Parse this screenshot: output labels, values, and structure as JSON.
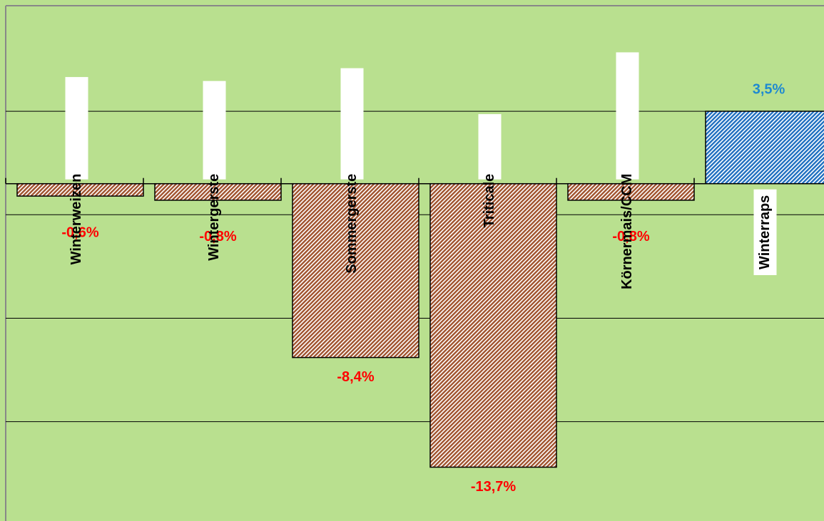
{
  "chart_data": {
    "type": "bar",
    "categories": [
      "Winterweizen",
      "Wintergerste",
      "Sommergerste",
      "Triticale",
      "Körnermais/CCM",
      "Winterraps"
    ],
    "values": [
      -0.6,
      -0.8,
      -8.4,
      -13.7,
      -0.8,
      3.5
    ],
    "value_labels": [
      "-0,6%",
      "-0,8%",
      "-8,4%",
      "-13,7%",
      "-0,8%",
      "3,5%"
    ],
    "colors": [
      "#a0522d",
      "#a0522d",
      "#a0522d",
      "#a0522d",
      "#a0522d",
      "#1f6fc0"
    ],
    "value_label_colors": [
      "#ff0000",
      "#ff0000",
      "#ff0000",
      "#ff0000",
      "#ff0000",
      "#1f8ad0"
    ],
    "ylim": [
      -16.3,
      8.6
    ],
    "yticks": [
      3.5,
      -1.5,
      -6.5,
      -11.5
    ],
    "grid": true
  }
}
